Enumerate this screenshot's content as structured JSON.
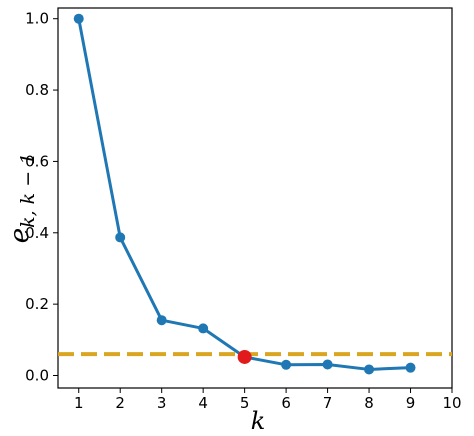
{
  "chart_data": {
    "type": "line",
    "xlabel": "k",
    "ylabel": "e",
    "ylabel_subscript": "k, k − 1",
    "xlim": [
      0.5,
      10
    ],
    "ylim": [
      -0.035,
      1.03
    ],
    "x_ticks": [
      1,
      2,
      3,
      4,
      5,
      6,
      7,
      8,
      9,
      10
    ],
    "y_ticks": [
      0.0,
      0.2,
      0.4,
      0.6,
      0.8,
      1.0
    ],
    "y_tick_labels": [
      "0.0",
      "0.2",
      "0.4",
      "0.6",
      "0.8",
      "1.0"
    ],
    "series": [
      {
        "x": [
          1,
          2,
          3,
          4,
          5,
          6,
          7,
          8,
          9
        ],
        "y": [
          1.0,
          0.387,
          0.155,
          0.132,
          0.052,
          0.03,
          0.031,
          0.017,
          0.022
        ],
        "color": "#1f77b4"
      }
    ],
    "highlight": {
      "x": 5,
      "y": 0.052,
      "color": "#e31a1c"
    },
    "threshold": {
      "y": 0.06,
      "color": "#daa520",
      "style": "dashed"
    },
    "grid": false
  }
}
